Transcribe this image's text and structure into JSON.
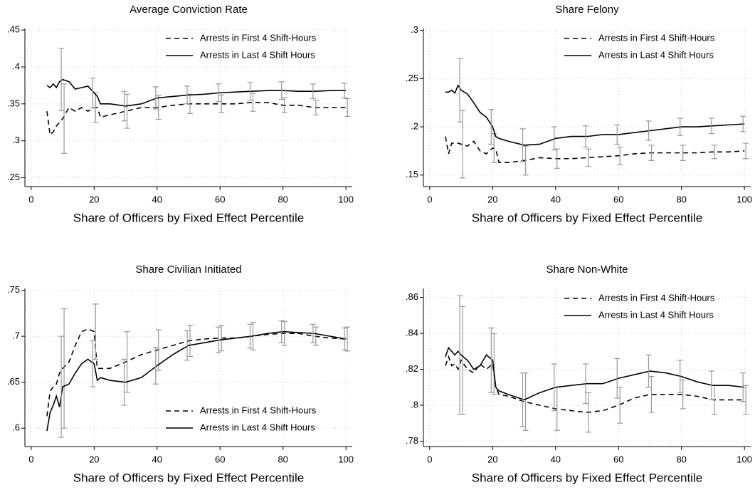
{
  "chart_data": [
    {
      "type": "line",
      "title": "Average Conviction Rate",
      "x_label": "Share of Officers by Fixed Effect Percentile",
      "x": [
        5,
        6,
        7,
        8,
        9,
        10,
        12,
        14,
        16,
        18,
        20,
        21,
        22,
        25,
        30,
        35,
        40,
        45,
        50,
        55,
        60,
        65,
        70,
        75,
        80,
        85,
        90,
        95,
        100
      ],
      "xlim": [
        -2,
        102
      ],
      "xticks": [
        0,
        20,
        40,
        60,
        80,
        100
      ],
      "ylim": [
        0.238,
        0.452
      ],
      "yticks": [
        {
          "value": 0.25,
          "label": ".25"
        },
        {
          "value": 0.3,
          "label": ".3"
        },
        {
          "value": 0.35,
          "label": ".35"
        },
        {
          "value": 0.4,
          "label": ".4"
        },
        {
          "value": 0.45,
          "label": ".45"
        }
      ],
      "grid": true,
      "legend": "top-right",
      "error_color": "#999999",
      "series": [
        {
          "name": "Arrests in First 4 Shift-Hours",
          "color": "#000000",
          "dash": "7,5",
          "values": [
            0.34,
            0.308,
            0.312,
            0.32,
            0.325,
            0.33,
            0.345,
            0.34,
            0.345,
            0.34,
            0.345,
            0.345,
            0.332,
            0.335,
            0.34,
            0.345,
            0.345,
            0.348,
            0.35,
            0.35,
            0.35,
            0.35,
            0.352,
            0.352,
            0.348,
            0.348,
            0.345,
            0.345,
            0.345
          ],
          "errors": [
            null,
            null,
            null,
            null,
            null,
            0.047,
            null,
            null,
            null,
            null,
            0.02,
            null,
            null,
            null,
            0.023,
            null,
            0.016,
            null,
            0.013,
            null,
            0.012,
            null,
            0.012,
            null,
            0.01,
            null,
            0.01,
            null,
            0.012
          ]
        },
        {
          "name": "Arrests in Last 4 Shift Hours",
          "color": "#000000",
          "dash": "none",
          "values": [
            0.375,
            0.372,
            0.377,
            0.372,
            0.38,
            0.383,
            0.38,
            0.37,
            0.372,
            0.374,
            0.365,
            0.36,
            0.35,
            0.35,
            0.347,
            0.35,
            0.358,
            0.36,
            0.362,
            0.363,
            0.365,
            0.366,
            0.367,
            0.368,
            0.368,
            0.367,
            0.367,
            0.368,
            0.368
          ],
          "errors": [
            null,
            null,
            null,
            null,
            null,
            0.042,
            null,
            null,
            null,
            null,
            0.02,
            null,
            null,
            null,
            0.02,
            null,
            0.015,
            null,
            0.012,
            null,
            0.012,
            null,
            0.012,
            null,
            0.012,
            null,
            0.01,
            null,
            0.01
          ]
        }
      ]
    },
    {
      "type": "line",
      "title": "Share Felony",
      "x_label": "Share of Officers by Fixed Effect Percentile",
      "x": [
        5,
        6,
        7,
        8,
        9,
        10,
        12,
        14,
        16,
        18,
        20,
        21,
        22,
        25,
        30,
        35,
        40,
        45,
        50,
        55,
        60,
        65,
        70,
        75,
        80,
        85,
        90,
        95,
        100
      ],
      "xlim": [
        -2,
        102
      ],
      "xticks": [
        0,
        20,
        40,
        60,
        80,
        100
      ],
      "ylim": [
        0.138,
        0.302
      ],
      "yticks": [
        {
          "value": 0.15,
          "label": ".15"
        },
        {
          "value": 0.2,
          "label": ".2"
        },
        {
          "value": 0.25,
          "label": ".25"
        },
        {
          "value": 0.3,
          "label": ".3"
        }
      ],
      "grid": true,
      "legend": "top-right",
      "error_color": "#999999",
      "series": [
        {
          "name": "Arrests in First 4 Shift-Hours",
          "color": "#000000",
          "dash": "7,5",
          "values": [
            0.19,
            0.172,
            0.183,
            0.183,
            0.183,
            0.182,
            0.18,
            0.185,
            0.175,
            0.172,
            0.178,
            0.177,
            0.163,
            0.163,
            0.165,
            0.168,
            0.167,
            0.167,
            0.168,
            0.169,
            0.17,
            0.172,
            0.173,
            0.173,
            0.173,
            0.173,
            0.174,
            0.174,
            0.175
          ],
          "errors": [
            null,
            null,
            null,
            null,
            null,
            0.035,
            null,
            null,
            null,
            null,
            0.015,
            null,
            null,
            null,
            0.015,
            null,
            0.01,
            null,
            0.009,
            null,
            0.009,
            null,
            0.008,
            null,
            0.008,
            null,
            0.007,
            null,
            0.008
          ]
        },
        {
          "name": "Arrests in Last 4 Shift Hours",
          "color": "#000000",
          "dash": "none",
          "values": [
            0.236,
            0.236,
            0.238,
            0.235,
            0.243,
            0.238,
            0.234,
            0.225,
            0.215,
            0.21,
            0.2,
            0.19,
            0.188,
            0.185,
            0.181,
            0.182,
            0.188,
            0.19,
            0.19,
            0.192,
            0.192,
            0.194,
            0.196,
            0.198,
            0.2,
            0.2,
            0.201,
            0.202,
            0.203
          ],
          "errors": [
            null,
            null,
            null,
            null,
            null,
            0.033,
            null,
            null,
            null,
            null,
            0.018,
            null,
            null,
            null,
            0.017,
            null,
            0.012,
            null,
            0.011,
            null,
            0.01,
            null,
            0.01,
            null,
            0.009,
            null,
            0.008,
            null,
            0.008
          ]
        }
      ]
    },
    {
      "type": "line",
      "title": "Share Civilian Initiated",
      "x_label": "Share of Officers by Fixed Effect Percentile",
      "x": [
        5,
        6,
        7,
        8,
        9,
        10,
        12,
        14,
        16,
        18,
        20,
        21,
        22,
        25,
        30,
        35,
        40,
        45,
        50,
        55,
        60,
        65,
        70,
        75,
        80,
        85,
        90,
        95,
        100
      ],
      "xlim": [
        -2,
        102
      ],
      "xticks": [
        0,
        20,
        40,
        60,
        80,
        100
      ],
      "ylim": [
        0.58,
        0.752
      ],
      "yticks": [
        {
          "value": 0.6,
          "label": ".6"
        },
        {
          "value": 0.65,
          "label": ".65"
        },
        {
          "value": 0.7,
          "label": ".7"
        },
        {
          "value": 0.75,
          "label": ".75"
        }
      ],
      "grid": true,
      "legend": "bottom-right",
      "error_color": "#999999",
      "series": [
        {
          "name": "Arrests in First 4 Shift-Hours",
          "color": "#000000",
          "dash": "7,5",
          "values": [
            0.613,
            0.64,
            0.645,
            0.648,
            0.66,
            0.665,
            0.672,
            0.69,
            0.705,
            0.708,
            0.705,
            0.665,
            0.665,
            0.665,
            0.672,
            0.68,
            0.685,
            0.69,
            0.695,
            0.697,
            0.698,
            0.698,
            0.7,
            0.702,
            0.703,
            0.703,
            0.7,
            0.698,
            0.697
          ],
          "errors": [
            null,
            null,
            null,
            null,
            null,
            0.065,
            null,
            null,
            null,
            null,
            0.03,
            null,
            null,
            null,
            0.033,
            null,
            0.022,
            null,
            0.017,
            null,
            0.014,
            null,
            0.015,
            null,
            0.013,
            null,
            0.01,
            null,
            0.013
          ]
        },
        {
          "name": "Arrests in Last 4 Shift Hours",
          "color": "#000000",
          "dash": "none",
          "values": [
            0.597,
            0.617,
            0.625,
            0.635,
            0.623,
            0.645,
            0.648,
            0.66,
            0.67,
            0.675,
            0.67,
            0.652,
            0.655,
            0.652,
            0.65,
            0.655,
            0.668,
            0.68,
            0.69,
            0.693,
            0.696,
            0.698,
            0.7,
            0.703,
            0.705,
            0.704,
            0.703,
            0.7,
            0.697
          ],
          "errors": [
            null,
            null,
            null,
            null,
            null,
            0.055,
            null,
            null,
            null,
            null,
            0.025,
            null,
            null,
            null,
            0.025,
            null,
            0.02,
            null,
            0.016,
            null,
            0.014,
            null,
            0.013,
            null,
            0.012,
            null,
            0.01,
            null,
            0.012
          ]
        }
      ]
    },
    {
      "type": "line",
      "title": "Share Non-White",
      "x_label": "Share of Officers by Fixed Effect Percentile",
      "x": [
        5,
        6,
        7,
        8,
        9,
        10,
        12,
        14,
        16,
        18,
        20,
        21,
        22,
        25,
        30,
        35,
        40,
        45,
        50,
        55,
        60,
        65,
        70,
        75,
        80,
        85,
        90,
        95,
        100
      ],
      "xlim": [
        -2,
        102
      ],
      "xticks": [
        0,
        20,
        40,
        60,
        80,
        100
      ],
      "ylim": [
        0.777,
        0.865
      ],
      "yticks": [
        {
          "value": 0.78,
          "label": ".78"
        },
        {
          "value": 0.8,
          "label": ".8"
        },
        {
          "value": 0.82,
          "label": ".82"
        },
        {
          "value": 0.84,
          "label": ".84"
        },
        {
          "value": 0.86,
          "label": ".86"
        }
      ],
      "grid": true,
      "legend": "top-right",
      "error_color": "#999999",
      "series": [
        {
          "name": "Arrests in First 4 Shift-Hours",
          "color": "#000000",
          "dash": "7,5",
          "values": [
            0.822,
            0.827,
            0.822,
            0.823,
            0.82,
            0.825,
            0.82,
            0.818,
            0.823,
            0.82,
            0.823,
            0.81,
            0.806,
            0.805,
            0.802,
            0.8,
            0.798,
            0.797,
            0.796,
            0.797,
            0.8,
            0.804,
            0.806,
            0.806,
            0.806,
            0.805,
            0.803,
            0.803,
            0.803
          ],
          "errors": [
            null,
            null,
            null,
            null,
            null,
            0.03,
            null,
            null,
            null,
            null,
            0.017,
            null,
            null,
            null,
            0.016,
            null,
            0.012,
            null,
            0.011,
            null,
            0.01,
            null,
            0.01,
            null,
            0.008,
            null,
            0.008,
            null,
            0.008
          ]
        },
        {
          "name": "Arrests in Last 4 Shift Hours",
          "color": "#000000",
          "dash": "none",
          "values": [
            0.827,
            0.832,
            0.83,
            0.828,
            0.83,
            0.828,
            0.825,
            0.82,
            0.822,
            0.828,
            0.825,
            0.81,
            0.808,
            0.806,
            0.803,
            0.807,
            0.81,
            0.811,
            0.812,
            0.812,
            0.815,
            0.817,
            0.819,
            0.818,
            0.816,
            0.813,
            0.811,
            0.811,
            0.81
          ],
          "errors": [
            null,
            null,
            null,
            null,
            null,
            0.033,
            null,
            null,
            null,
            null,
            0.018,
            null,
            null,
            null,
            0.015,
            null,
            0.013,
            null,
            0.011,
            null,
            0.011,
            null,
            0.009,
            null,
            0.009,
            null,
            0.008,
            null,
            0.008
          ]
        }
      ]
    }
  ]
}
